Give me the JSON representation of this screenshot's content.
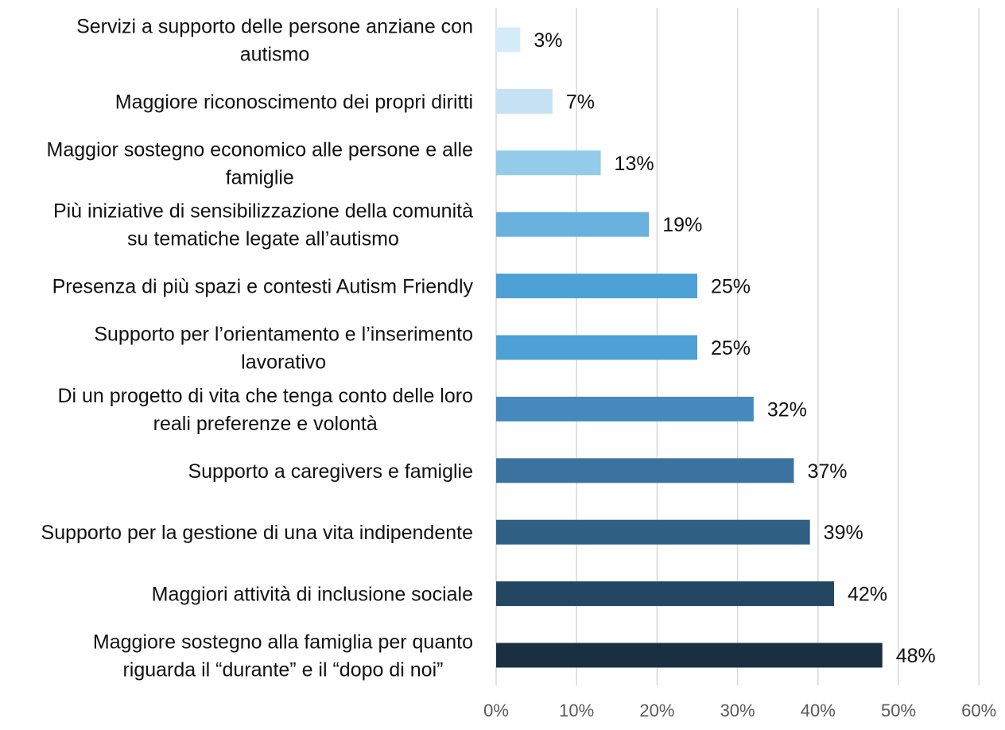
{
  "chart_data": {
    "type": "bar",
    "orientation": "horizontal",
    "categories": [
      [
        "Servizi a supporto delle persone anziane con",
        "autismo"
      ],
      [
        "Maggiore riconoscimento dei propri diritti"
      ],
      [
        "Maggior sostegno economico alle persone e alle",
        "famiglie"
      ],
      [
        "Più iniziative di sensibilizzazione della comunità",
        "su tematiche legate all’autismo"
      ],
      [
        "Presenza di più spazi e contesti Autism Friendly"
      ],
      [
        "Supporto per l’orientamento e l’inserimento",
        "lavorativo"
      ],
      [
        "Di un progetto di vita che tenga conto delle loro",
        "reali preferenze e volontà"
      ],
      [
        "Supporto a caregivers e famiglie"
      ],
      [
        "Supporto per la gestione di una vita indipendente"
      ],
      [
        "Maggiori attività di inclusione sociale"
      ],
      [
        "Maggiore sostegno alla famiglia per quanto",
        "riguarda il “durante” e il “dopo di noi”"
      ]
    ],
    "values": [
      3,
      7,
      13,
      19,
      25,
      25,
      32,
      37,
      39,
      42,
      48
    ],
    "data_labels": [
      "3%",
      "7%",
      "13%",
      "19%",
      "25%",
      "25%",
      "32%",
      "37%",
      "39%",
      "42%",
      "48%"
    ],
    "bar_colors": [
      "#d5ecf8",
      "#c6e2f2",
      "#94cbe9",
      "#6bb1dd",
      "#4ea1d6",
      "#4ea1d6",
      "#4589bd",
      "#3a73a0",
      "#2f5f83",
      "#234663",
      "#1a2f42"
    ],
    "xlim": [
      0,
      60
    ],
    "x_ticks": [
      "0%",
      "10%",
      "20%",
      "30%",
      "40%",
      "50%",
      "60%"
    ],
    "grid": true,
    "legend": "none",
    "title": "",
    "xlabel": "",
    "ylabel": ""
  }
}
